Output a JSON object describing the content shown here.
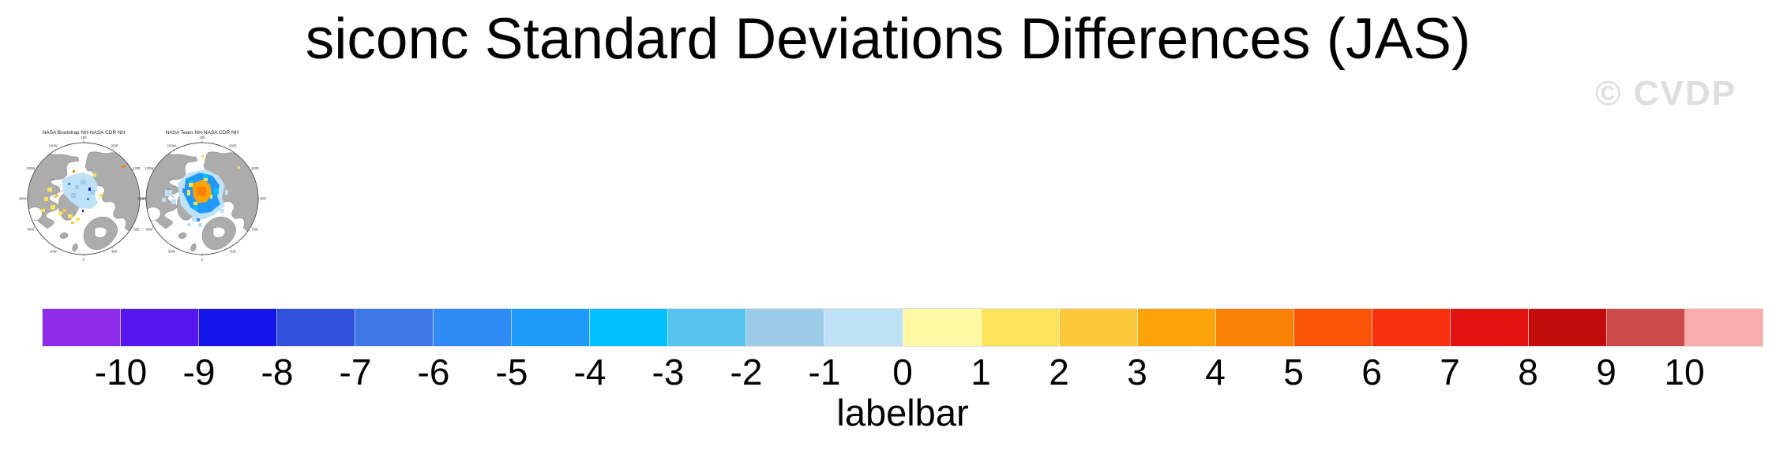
{
  "page": {
    "title": "siconc Standard Deviations Differences (JAS)",
    "watermark": "© CVDP",
    "background": "#ffffff"
  },
  "map_style": {
    "land_color": "#acacac",
    "coast_color": "#6e6e6e",
    "ocean_color": "#ffffff",
    "circle_color": "#3c3c3c",
    "lon_labels": [
      "180",
      "150E",
      "120E",
      "90E",
      "60E",
      "30E",
      "0",
      "30W",
      "60W",
      "90W",
      "120W",
      "150W"
    ]
  },
  "chart_data": {
    "type": "heatmap",
    "title": "siconc Standard Deviations Differences (JAS)",
    "variable": "siconc",
    "statistic": "standard deviation difference",
    "season": "JAS",
    "panels": [
      {
        "title": "NASA Bootstrap NH-NASA CDR NH",
        "projection": "north-polar-stereographic",
        "summary": "Weak differences: pale blue (-1 to 0) over the central Arctic Ocean with scattered yellow/gold patches (0 to 2) around the Canadian Archipelago, Hudson Bay margin and ice edge; isolated dark-blue and orange specks."
      },
      {
        "title": "NASA Team NH-NASA CDR NH",
        "projection": "north-polar-stereographic",
        "summary": "Ring of negative differences (blues, -5 to -1) around the central Arctic with a positive orange core (3 to 5) near the pole fringed by yellow (1 to 2); light blue patches over the Canadian side and toward the Atlantic ice edge."
      }
    ],
    "colorbar": {
      "label": "labelbar",
      "ticks": [
        -10,
        -9,
        -8,
        -7,
        -6,
        -5,
        -4,
        -3,
        -2,
        -1,
        0,
        1,
        2,
        3,
        4,
        5,
        6,
        7,
        8,
        9,
        10
      ],
      "colors": [
        "#8e2cea",
        "#5517ed",
        "#1414ed",
        "#3052db",
        "#3d77e5",
        "#2e8bf5",
        "#1e9bfa",
        "#00c0fe",
        "#55c5f0",
        "#9ccce8",
        "#bee1f5",
        "#fdf8a2",
        "#fde35a",
        "#fdc93b",
        "#fca407",
        "#f98205",
        "#fa5408",
        "#f8300e",
        "#e21112",
        "#c30d0d",
        "#cd4a4a",
        "#f9acac"
      ]
    }
  }
}
